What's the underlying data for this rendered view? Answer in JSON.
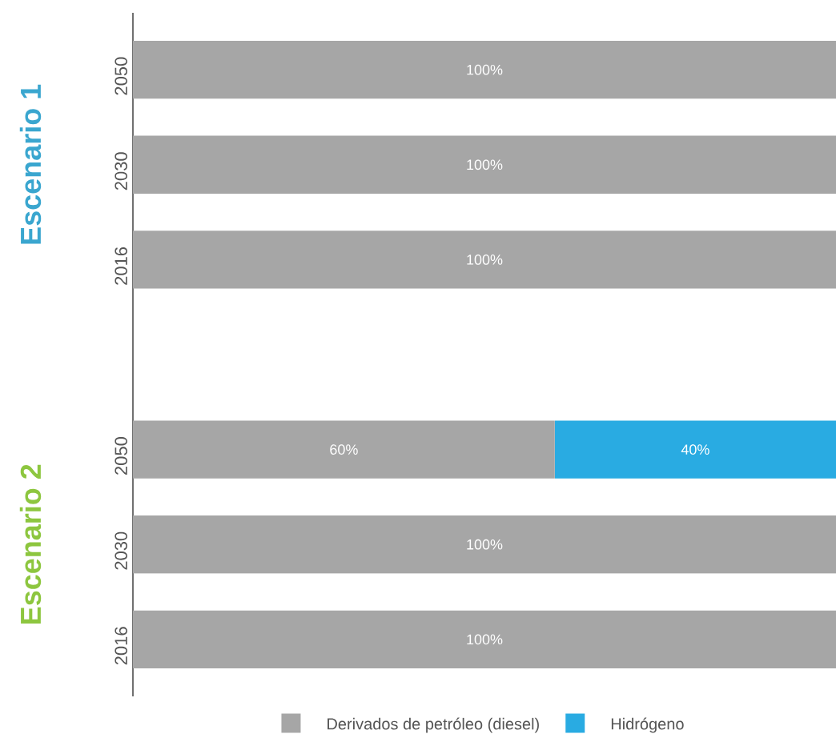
{
  "chart_data": {
    "type": "bar",
    "orientation": "horizontal",
    "stacked": true,
    "categories": [
      "2050",
      "2030",
      "2016",
      null,
      "2050",
      "2030",
      "2016"
    ],
    "series": [
      {
        "name": "Derivados de petróleo (diesel)",
        "color": "#a6a6a6",
        "values": [
          100,
          100,
          100,
          null,
          60,
          100,
          100
        ],
        "value_labels": [
          "100%",
          "100%",
          "100%",
          null,
          "60%",
          "100%",
          "100%"
        ]
      },
      {
        "name": "Hidrógeno",
        "color": "#29abe2",
        "values": [
          null,
          null,
          null,
          null,
          40,
          null,
          null
        ],
        "value_labels": [
          null,
          null,
          null,
          null,
          "40%",
          null,
          null
        ]
      }
    ],
    "xlim": [
      0,
      100
    ],
    "tick_labels": "y",
    "legend": "bottom",
    "annotations": [
      "Escenario 1",
      "Escenario 2"
    ]
  }
}
